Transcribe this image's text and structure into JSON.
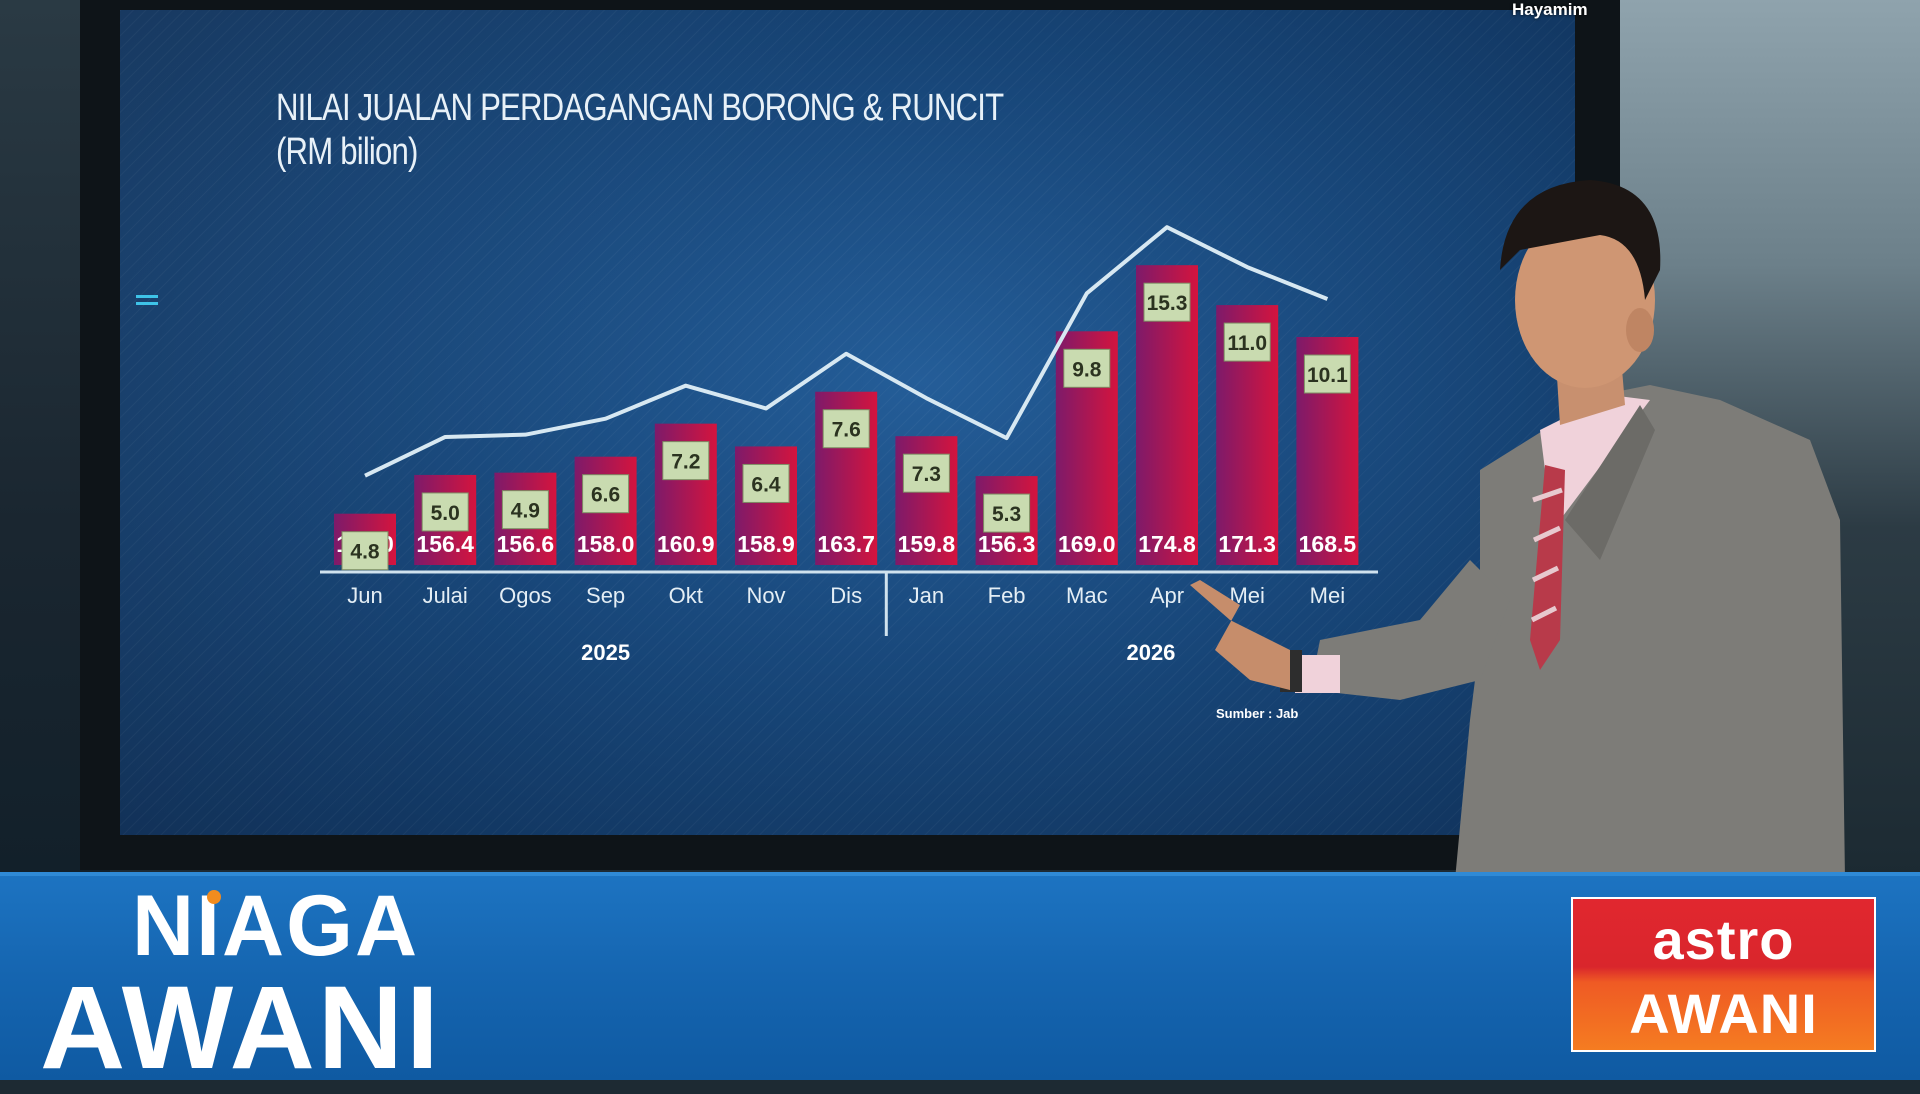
{
  "corner_tag": "Hayamim",
  "chart_data": {
    "type": "bar",
    "title": "NILAI JUALAN PERDAGANGAN BORONG & RUNCIT",
    "subtitle": "(RM bilion)",
    "categories": [
      "Jun",
      "Julai",
      "Ogos",
      "Sep",
      "Okt",
      "Nov",
      "Dis",
      "Jan",
      "Feb",
      "Mac",
      "Apr",
      "Mei",
      "Mei"
    ],
    "years": [
      {
        "label": "2025",
        "months": [
          "Jun",
          "Julai",
          "Ogos",
          "Sep",
          "Okt",
          "Nov",
          "Dis"
        ]
      },
      {
        "label": "2026",
        "months": [
          "Jan",
          "Feb",
          "Mac",
          "Apr",
          "Mei",
          "Mei"
        ]
      }
    ],
    "series": [
      {
        "values": [
          153.0,
          156.4,
          156.6,
          158.0,
          160.9,
          158.9,
          163.7,
          159.8,
          156.3,
          169.0,
          174.8,
          171.3,
          168.5
        ]
      },
      {
        "values": [
          4.8,
          5.0,
          4.9,
          6.6,
          7.2,
          6.4,
          7.6,
          7.3,
          5.3,
          9.8,
          15.3,
          11.0,
          10.1
        ]
      }
    ],
    "value_labels": [
      "153.0",
      "156.4",
      "156.6",
      "158.0",
      "160.9",
      "158.9",
      "163.7",
      "159.8",
      "156.3",
      "169.0",
      "174.8",
      "171.3",
      "168.5"
    ],
    "box_labels": [
      "4.8",
      "5.0",
      "4.9",
      "6.6",
      "7.2",
      "6.4",
      "7.6",
      "7.3",
      "5.3",
      "9.8",
      "15.3",
      "11.0",
      "10.1"
    ],
    "source": "Sumber : Jab"
  },
  "branding": {
    "show_top": "NIAGA",
    "show_bottom": "AWANI",
    "logo_top": "astro",
    "logo_bottom": "AWANI"
  },
  "colors": {
    "bar_start": "#7d1a6a",
    "bar_end": "#d4143e",
    "box_fill": "#c9dbb0",
    "line": "#d7e8f2",
    "band": "#1565b0"
  }
}
